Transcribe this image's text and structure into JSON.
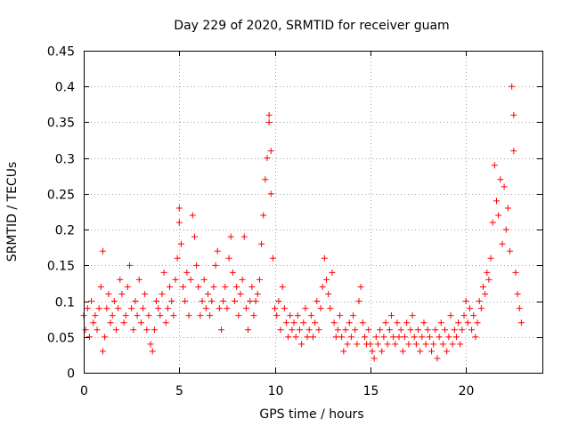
{
  "chart_data": {
    "type": "scatter",
    "title": "Day 229 of 2020, SRMTID for receiver guam",
    "xlabel": "GPS time / hours",
    "ylabel": "SRMTID / TECUs",
    "xlim": [
      0,
      24
    ],
    "ylim": [
      0,
      0.45
    ],
    "xticks": [
      0,
      5,
      10,
      15,
      20
    ],
    "xtick_labels": [
      "0",
      "5",
      "10",
      "15",
      "20"
    ],
    "yticks": [
      0,
      0.05,
      0.1,
      0.15,
      0.2,
      0.25,
      0.3,
      0.35,
      0.4,
      0.45
    ],
    "ytick_labels": [
      "0",
      "0.05",
      "0.1",
      "0.15",
      "0.2",
      "0.25",
      "0.3",
      "0.35",
      "0.4",
      "0.45"
    ],
    "grid": true,
    "marker": "+",
    "series": [
      {
        "name": "SRMTID",
        "color": "#ff0000",
        "points": [
          [
            0.0,
            0.08
          ],
          [
            0.1,
            0.06
          ],
          [
            0.2,
            0.09
          ],
          [
            0.3,
            0.05
          ],
          [
            0.4,
            0.1
          ],
          [
            0.5,
            0.07
          ],
          [
            0.6,
            0.08
          ],
          [
            0.7,
            0.06
          ],
          [
            0.8,
            0.09
          ],
          [
            0.9,
            0.12
          ],
          [
            1.0,
            0.17
          ],
          [
            1.0,
            0.03
          ],
          [
            1.1,
            0.05
          ],
          [
            1.2,
            0.09
          ],
          [
            1.3,
            0.11
          ],
          [
            1.4,
            0.07
          ],
          [
            1.5,
            0.08
          ],
          [
            1.6,
            0.1
          ],
          [
            1.7,
            0.06
          ],
          [
            1.8,
            0.09
          ],
          [
            1.9,
            0.13
          ],
          [
            2.0,
            0.11
          ],
          [
            2.1,
            0.07
          ],
          [
            2.2,
            0.08
          ],
          [
            2.3,
            0.12
          ],
          [
            2.4,
            0.15
          ],
          [
            2.5,
            0.09
          ],
          [
            2.6,
            0.06
          ],
          [
            2.7,
            0.1
          ],
          [
            2.8,
            0.08
          ],
          [
            2.9,
            0.13
          ],
          [
            3.0,
            0.07
          ],
          [
            3.1,
            0.09
          ],
          [
            3.2,
            0.11
          ],
          [
            3.3,
            0.06
          ],
          [
            3.4,
            0.08
          ],
          [
            3.5,
            0.04
          ],
          [
            3.6,
            0.03
          ],
          [
            3.7,
            0.06
          ],
          [
            3.8,
            0.1
          ],
          [
            3.9,
            0.09
          ],
          [
            4.0,
            0.08
          ],
          [
            4.1,
            0.11
          ],
          [
            4.2,
            0.14
          ],
          [
            4.3,
            0.07
          ],
          [
            4.4,
            0.09
          ],
          [
            4.5,
            0.12
          ],
          [
            4.6,
            0.1
          ],
          [
            4.7,
            0.08
          ],
          [
            4.8,
            0.13
          ],
          [
            4.9,
            0.16
          ],
          [
            5.0,
            0.23
          ],
          [
            5.0,
            0.21
          ],
          [
            5.1,
            0.18
          ],
          [
            5.2,
            0.12
          ],
          [
            5.3,
            0.1
          ],
          [
            5.4,
            0.14
          ],
          [
            5.5,
            0.08
          ],
          [
            5.6,
            0.13
          ],
          [
            5.7,
            0.22
          ],
          [
            5.8,
            0.19
          ],
          [
            5.9,
            0.15
          ],
          [
            6.0,
            0.12
          ],
          [
            6.1,
            0.08
          ],
          [
            6.2,
            0.1
          ],
          [
            6.3,
            0.13
          ],
          [
            6.4,
            0.09
          ],
          [
            6.5,
            0.11
          ],
          [
            6.6,
            0.08
          ],
          [
            6.7,
            0.1
          ],
          [
            6.8,
            0.12
          ],
          [
            6.9,
            0.15
          ],
          [
            7.0,
            0.17
          ],
          [
            7.1,
            0.09
          ],
          [
            7.2,
            0.06
          ],
          [
            7.3,
            0.1
          ],
          [
            7.4,
            0.12
          ],
          [
            7.5,
            0.09
          ],
          [
            7.6,
            0.16
          ],
          [
            7.7,
            0.19
          ],
          [
            7.8,
            0.14
          ],
          [
            7.9,
            0.1
          ],
          [
            8.0,
            0.12
          ],
          [
            8.1,
            0.08
          ],
          [
            8.2,
            0.11
          ],
          [
            8.3,
            0.13
          ],
          [
            8.4,
            0.19
          ],
          [
            8.5,
            0.09
          ],
          [
            8.6,
            0.06
          ],
          [
            8.7,
            0.1
          ],
          [
            8.8,
            0.12
          ],
          [
            8.9,
            0.08
          ],
          [
            9.0,
            0.1
          ],
          [
            9.1,
            0.11
          ],
          [
            9.2,
            0.13
          ],
          [
            9.3,
            0.18
          ],
          [
            9.4,
            0.22
          ],
          [
            9.5,
            0.27
          ],
          [
            9.6,
            0.3
          ],
          [
            9.7,
            0.36
          ],
          [
            9.7,
            0.35
          ],
          [
            9.8,
            0.25
          ],
          [
            9.8,
            0.31
          ],
          [
            9.9,
            0.16
          ],
          [
            10.0,
            0.09
          ],
          [
            10.1,
            0.08
          ],
          [
            10.2,
            0.1
          ],
          [
            10.3,
            0.06
          ],
          [
            10.4,
            0.12
          ],
          [
            10.5,
            0.09
          ],
          [
            10.6,
            0.07
          ],
          [
            10.7,
            0.05
          ],
          [
            10.8,
            0.08
          ],
          [
            10.9,
            0.06
          ],
          [
            11.0,
            0.07
          ],
          [
            11.1,
            0.05
          ],
          [
            11.2,
            0.08
          ],
          [
            11.3,
            0.06
          ],
          [
            11.4,
            0.04
          ],
          [
            11.5,
            0.07
          ],
          [
            11.6,
            0.09
          ],
          [
            11.7,
            0.05
          ],
          [
            11.8,
            0.06
          ],
          [
            11.9,
            0.08
          ],
          [
            12.0,
            0.05
          ],
          [
            12.1,
            0.07
          ],
          [
            12.2,
            0.1
          ],
          [
            12.3,
            0.06
          ],
          [
            12.4,
            0.09
          ],
          [
            12.5,
            0.12
          ],
          [
            12.6,
            0.16
          ],
          [
            12.7,
            0.13
          ],
          [
            12.8,
            0.11
          ],
          [
            12.9,
            0.09
          ],
          [
            13.0,
            0.14
          ],
          [
            13.1,
            0.07
          ],
          [
            13.2,
            0.05
          ],
          [
            13.3,
            0.06
          ],
          [
            13.4,
            0.08
          ],
          [
            13.5,
            0.05
          ],
          [
            13.6,
            0.03
          ],
          [
            13.7,
            0.06
          ],
          [
            13.8,
            0.04
          ],
          [
            13.9,
            0.07
          ],
          [
            14.0,
            0.05
          ],
          [
            14.1,
            0.08
          ],
          [
            14.2,
            0.06
          ],
          [
            14.3,
            0.04
          ],
          [
            14.4,
            0.1
          ],
          [
            14.5,
            0.12
          ],
          [
            14.6,
            0.07
          ],
          [
            14.7,
            0.05
          ],
          [
            14.8,
            0.04
          ],
          [
            14.9,
            0.06
          ],
          [
            15.0,
            0.04
          ],
          [
            15.1,
            0.03
          ],
          [
            15.2,
            0.02
          ],
          [
            15.3,
            0.05
          ],
          [
            15.4,
            0.04
          ],
          [
            15.5,
            0.06
          ],
          [
            15.6,
            0.03
          ],
          [
            15.7,
            0.05
          ],
          [
            15.8,
            0.07
          ],
          [
            15.9,
            0.04
          ],
          [
            16.0,
            0.06
          ],
          [
            16.1,
            0.08
          ],
          [
            16.2,
            0.05
          ],
          [
            16.3,
            0.04
          ],
          [
            16.4,
            0.07
          ],
          [
            16.5,
            0.05
          ],
          [
            16.6,
            0.06
          ],
          [
            16.7,
            0.03
          ],
          [
            16.8,
            0.05
          ],
          [
            16.9,
            0.07
          ],
          [
            17.0,
            0.04
          ],
          [
            17.1,
            0.06
          ],
          [
            17.2,
            0.08
          ],
          [
            17.3,
            0.05
          ],
          [
            17.4,
            0.04
          ],
          [
            17.5,
            0.06
          ],
          [
            17.6,
            0.03
          ],
          [
            17.7,
            0.05
          ],
          [
            17.8,
            0.07
          ],
          [
            17.9,
            0.04
          ],
          [
            18.0,
            0.06
          ],
          [
            18.1,
            0.05
          ],
          [
            18.2,
            0.03
          ],
          [
            18.3,
            0.04
          ],
          [
            18.4,
            0.06
          ],
          [
            18.5,
            0.02
          ],
          [
            18.6,
            0.05
          ],
          [
            18.7,
            0.07
          ],
          [
            18.8,
            0.04
          ],
          [
            18.9,
            0.06
          ],
          [
            19.0,
            0.03
          ],
          [
            19.1,
            0.05
          ],
          [
            19.2,
            0.08
          ],
          [
            19.3,
            0.04
          ],
          [
            19.4,
            0.06
          ],
          [
            19.5,
            0.05
          ],
          [
            19.6,
            0.07
          ],
          [
            19.7,
            0.04
          ],
          [
            19.8,
            0.06
          ],
          [
            19.9,
            0.08
          ],
          [
            20.0,
            0.1
          ],
          [
            20.1,
            0.07
          ],
          [
            20.2,
            0.09
          ],
          [
            20.3,
            0.06
          ],
          [
            20.4,
            0.08
          ],
          [
            20.5,
            0.05
          ],
          [
            20.6,
            0.07
          ],
          [
            20.7,
            0.1
          ],
          [
            20.8,
            0.09
          ],
          [
            20.9,
            0.12
          ],
          [
            21.0,
            0.11
          ],
          [
            21.1,
            0.14
          ],
          [
            21.2,
            0.13
          ],
          [
            21.3,
            0.16
          ],
          [
            21.4,
            0.21
          ],
          [
            21.5,
            0.29
          ],
          [
            21.6,
            0.24
          ],
          [
            21.7,
            0.22
          ],
          [
            21.8,
            0.27
          ],
          [
            21.9,
            0.18
          ],
          [
            22.0,
            0.26
          ],
          [
            22.1,
            0.2
          ],
          [
            22.2,
            0.23
          ],
          [
            22.3,
            0.17
          ],
          [
            22.4,
            0.4
          ],
          [
            22.5,
            0.36
          ],
          [
            22.5,
            0.31
          ],
          [
            22.6,
            0.14
          ],
          [
            22.7,
            0.11
          ],
          [
            22.8,
            0.09
          ],
          [
            22.9,
            0.07
          ]
        ]
      }
    ]
  }
}
